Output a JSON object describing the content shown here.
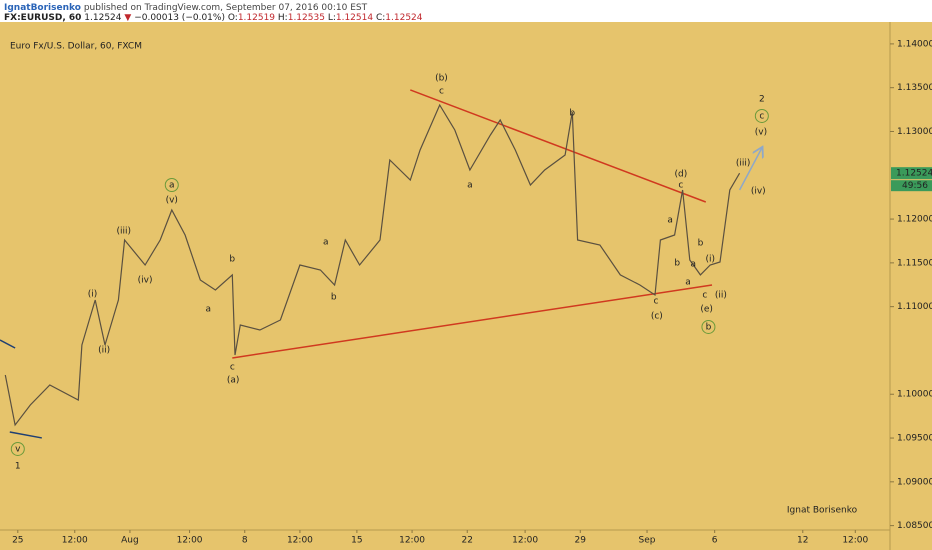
{
  "header": {
    "author": "IgnatBorisenko",
    "published": "published on TradingView.com, September 07, 2016 00:10 EST",
    "symbol": "FX:EURUSD, 60",
    "last": "1.12524",
    "arrow": "▼",
    "change": "−0.00013 (−0.01%)",
    "ohlc": [
      {
        "label": "O:",
        "value": "1.12519"
      },
      {
        "label": "H:",
        "value": "1.12535"
      },
      {
        "label": "L:",
        "value": "1.12514"
      },
      {
        "label": "C:",
        "value": "1.12524"
      }
    ]
  },
  "chart_data": {
    "type": "line",
    "title": "Euro Fx/U.S. Dollar, 60, FXCM",
    "watermark": "Ignat Borisenko",
    "countdown": "49:56",
    "color": "#5a5040",
    "background": "#e6c46c",
    "x": [
      0.6,
      1.7,
      3.4,
      5.6,
      8.8,
      9.2,
      10.7,
      11.8,
      13.3,
      14.0,
      16.3,
      18.0,
      19.3,
      20.8,
      22.5,
      24.2,
      26.1,
      26.4,
      27.0,
      29.2,
      31.5,
      33.7,
      36.0,
      37.6,
      38.8,
      40.4,
      42.7,
      43.8,
      46.1,
      47.2,
      49.4,
      51.1,
      52.8,
      55.1,
      56.2,
      57.9,
      59.6,
      61.2,
      63.5,
      64.3,
      64.9,
      67.4,
      69.7,
      71.9,
      73.6,
      74.2,
      75.8,
      76.7,
      77.5,
      78.7,
      79.8,
      80.9,
      82.0,
      83.1
    ],
    "values": [
      1.1022,
      1.09649,
      1.09877,
      1.10106,
      1.09934,
      1.10562,
      1.11076,
      1.10562,
      1.11076,
      1.11761,
      1.11476,
      1.11761,
      1.12104,
      1.11818,
      1.11304,
      1.1119,
      1.11362,
      1.10448,
      1.10791,
      1.10734,
      1.10848,
      1.11476,
      1.11419,
      1.11247,
      1.11761,
      1.11476,
      1.11761,
      1.12674,
      1.12446,
      1.12789,
      1.13302,
      1.13017,
      1.1256,
      1.1296,
      1.13131,
      1.12789,
      1.12389,
      1.1256,
      1.12732,
      1.13222,
      1.11761,
      1.11704,
      1.11362,
      1.11247,
      1.11133,
      1.11761,
      1.11818,
      1.12332,
      1.11533,
      1.11362,
      1.11476,
      1.1151,
      1.12332,
      1.12524
    ],
    "xlim": [
      0,
      100
    ],
    "ylim": [
      1.0845,
      1.1425
    ],
    "xticks": [
      {
        "value": 2.0,
        "label": "25"
      },
      {
        "value": 8.4,
        "label": "12:00"
      },
      {
        "value": 14.6,
        "label": "Aug"
      },
      {
        "value": 21.3,
        "label": "12:00"
      },
      {
        "value": 27.5,
        "label": "8"
      },
      {
        "value": 33.7,
        "label": "12:00"
      },
      {
        "value": 40.1,
        "label": "15"
      },
      {
        "value": 46.3,
        "label": "12:00"
      },
      {
        "value": 52.5,
        "label": "22"
      },
      {
        "value": 59.0,
        "label": "12:00"
      },
      {
        "value": 65.2,
        "label": "29"
      },
      {
        "value": 72.7,
        "label": "Sep"
      },
      {
        "value": 80.3,
        "label": "6"
      },
      {
        "value": 90.2,
        "label": "12"
      },
      {
        "value": 96.1,
        "label": "12:00"
      }
    ],
    "yticks": [
      {
        "value": 1.14,
        "label": "1.14000"
      },
      {
        "value": 1.135,
        "label": "1.13500"
      },
      {
        "value": 1.13,
        "label": "1.13000"
      },
      {
        "value": 1.12,
        "label": "1.12000"
      },
      {
        "value": 1.115,
        "label": "1.11500"
      },
      {
        "value": 1.11,
        "label": "1.11000"
      },
      {
        "value": 1.1,
        "label": "1.10000"
      },
      {
        "value": 1.095,
        "label": "1.09500"
      },
      {
        "value": 1.09,
        "label": "1.09000"
      },
      {
        "value": 1.085,
        "label": "1.08500"
      }
    ],
    "lines": [
      {
        "color": "#d0391f",
        "x": [
          46.1,
          79.3
        ],
        "y": [
          1.13474,
          1.12195
        ]
      },
      {
        "color": "#d0391f",
        "x": [
          26.1,
          80.0
        ],
        "y": [
          1.10414,
          1.11247
        ]
      },
      {
        "color": "#1f3f73",
        "x": [
          0,
          1.7
        ],
        "y": [
          1.10619,
          1.10528
        ]
      },
      {
        "color": "#1f3f73",
        "x": [
          1.1,
          4.7
        ],
        "y": [
          1.09569,
          1.09501
        ]
      },
      {
        "color": "#8fa8c8",
        "arrow": true,
        "x": [
          83.1,
          85.6
        ],
        "y": [
          1.12332,
          1.12811
        ]
      }
    ],
    "annotations": [
      {
        "text": "(b)",
        "style": "wave",
        "x": 49.6,
        "y": 1.13611
      },
      {
        "text": "c",
        "style": "sub",
        "x": 49.6,
        "y": 1.13462
      },
      {
        "text": "b",
        "style": "sub",
        "x": 64.3,
        "y": 1.13211
      },
      {
        "text": "a",
        "style": "sub",
        "x": 52.8,
        "y": 1.12389
      },
      {
        "text": "(d)",
        "style": "wave",
        "x": 76.5,
        "y": 1.12515
      },
      {
        "text": "c",
        "style": "sub",
        "x": 76.5,
        "y": 1.12389
      },
      {
        "text": "a",
        "style": "sub",
        "x": 75.3,
        "y": 1.11989
      },
      {
        "text": "b",
        "style": "sub",
        "x": 78.7,
        "y": 1.11727
      },
      {
        "text": "b",
        "style": "sub",
        "x": 76.1,
        "y": 1.11499
      },
      {
        "text": "a",
        "style": "sub",
        "x": 77.9,
        "y": 1.11487
      },
      {
        "text": "(i)",
        "style": "wave",
        "x": 79.8,
        "y": 1.11544
      },
      {
        "text": "a",
        "style": "sub",
        "x": 77.3,
        "y": 1.11282
      },
      {
        "text": "c",
        "style": "sub",
        "x": 79.2,
        "y": 1.11133
      },
      {
        "text": "(ii)",
        "style": "wave",
        "x": 81.0,
        "y": 1.11133
      },
      {
        "text": "(e)",
        "style": "wave",
        "x": 79.4,
        "y": 1.10973
      },
      {
        "text": "b",
        "style": "circle",
        "x": 79.6,
        "y": 1.10768
      },
      {
        "text": "c",
        "style": "sub",
        "x": 73.7,
        "y": 1.11065
      },
      {
        "text": "(c)",
        "style": "wave",
        "x": 73.8,
        "y": 1.10893
      },
      {
        "text": "(iii)",
        "style": "wave",
        "x": 83.5,
        "y": 1.1264
      },
      {
        "text": "(iv)",
        "style": "wave",
        "x": 85.2,
        "y": 1.12321
      },
      {
        "text": "(v)",
        "style": "wave",
        "x": 85.5,
        "y": 1.12994
      },
      {
        "text": "c",
        "style": "circle",
        "x": 85.6,
        "y": 1.13177
      },
      {
        "text": "2",
        "style": "degree",
        "x": 85.6,
        "y": 1.13371
      },
      {
        "text": "a",
        "style": "circle",
        "x": 19.3,
        "y": 1.12389
      },
      {
        "text": "(v)",
        "style": "wave",
        "x": 19.3,
        "y": 1.12218
      },
      {
        "text": "(iii)",
        "style": "wave",
        "x": 13.9,
        "y": 1.11864
      },
      {
        "text": "(iv)",
        "style": "wave",
        "x": 16.3,
        "y": 1.11304
      },
      {
        "text": "(i)",
        "style": "wave",
        "x": 10.4,
        "y": 1.11145
      },
      {
        "text": "(ii)",
        "style": "wave",
        "x": 11.7,
        "y": 1.10505
      },
      {
        "text": "b",
        "style": "sub",
        "x": 26.1,
        "y": 1.11544
      },
      {
        "text": "a",
        "style": "sub",
        "x": 23.4,
        "y": 1.10973
      },
      {
        "text": "c",
        "style": "sub",
        "x": 26.1,
        "y": 1.10311
      },
      {
        "text": "(a)",
        "style": "wave",
        "x": 26.2,
        "y": 1.10163
      },
      {
        "text": "a",
        "style": "sub",
        "x": 36.6,
        "y": 1.11738
      },
      {
        "text": "b",
        "style": "sub",
        "x": 37.5,
        "y": 1.1111
      },
      {
        "text": "v",
        "style": "circle",
        "x": 2.0,
        "y": 1.09375
      },
      {
        "text": "1",
        "style": "degree",
        "x": 2.0,
        "y": 1.09181
      }
    ]
  }
}
